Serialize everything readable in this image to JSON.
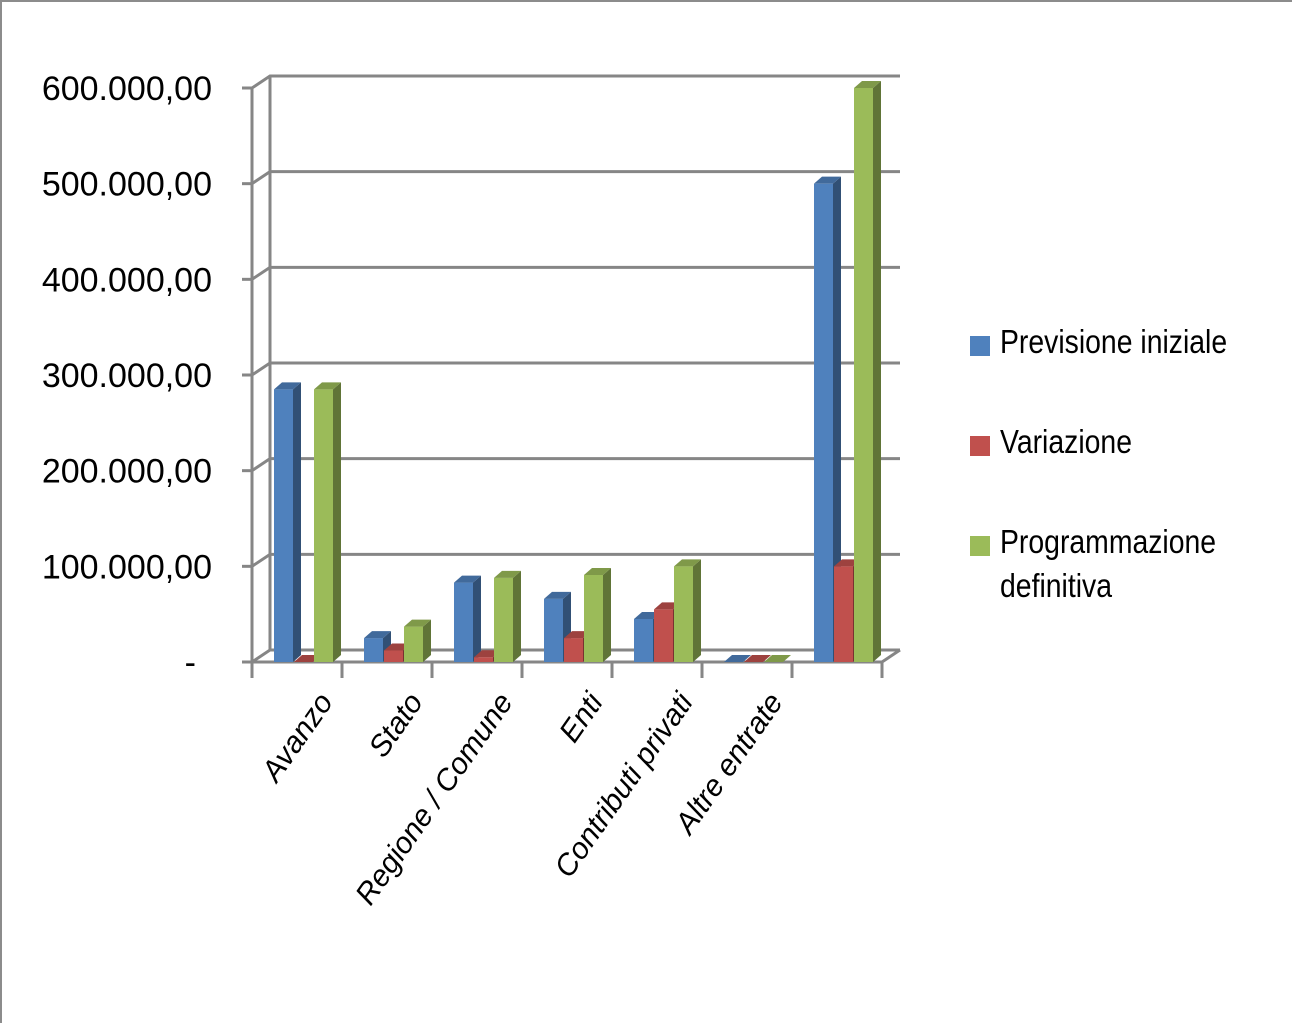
{
  "chart_data": {
    "type": "bar",
    "categories": [
      "Avanzo",
      "Stato",
      "Regione / Comune",
      "Enti",
      "Contributi privati",
      "Altre entrate",
      ""
    ],
    "series": [
      {
        "name": "Previsione iniziale",
        "color": "#4f81bd",
        "values": [
          285000,
          25000,
          83000,
          66000,
          45000,
          0,
          500000
        ]
      },
      {
        "name": "Variazione",
        "color": "#c0504d",
        "values": [
          0,
          12000,
          5000,
          25000,
          55000,
          0,
          100000
        ]
      },
      {
        "name": "Programmazione definitiva",
        "color": "#9bbb59",
        "values": [
          285000,
          37000,
          88000,
          91000,
          100000,
          0,
          600000
        ]
      }
    ],
    "y_tick_labels": [
      "-",
      "100.000,00",
      "200.000,00",
      "300.000,00",
      "400.000,00",
      "500.000,00",
      "600.000,00"
    ],
    "ylim": [
      0,
      600000
    ],
    "title": "",
    "xlabel": "",
    "ylabel": "",
    "grid": true,
    "legend_position": "right",
    "style": "3d-clustered-column"
  }
}
